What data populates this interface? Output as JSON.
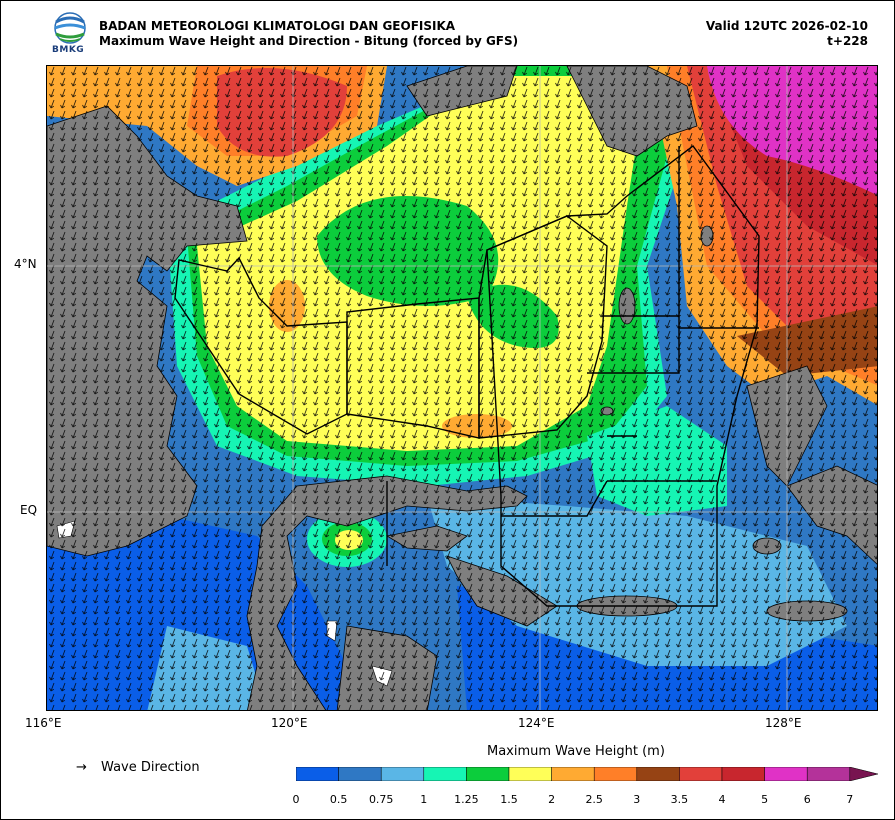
{
  "header": {
    "agency": "BADAN METEOROLOGI KLIMATOLOGI DAN GEOFISIKA",
    "product": "Maximum Wave Height and Direction - Bitung (forced by GFS)",
    "valid": "Valid 12UTC 2026-02-10",
    "forecast_hour": "t+228"
  },
  "logo": {
    "text": "BMKG"
  },
  "map": {
    "region": "Bitung",
    "lon_ticks": [
      "116°E",
      "120°E",
      "124°E",
      "128°E"
    ],
    "lat_ticks": [
      "4°N",
      "EQ"
    ],
    "land_color": "#7f7f7f",
    "dominant_direction": "south-southwest"
  },
  "legend": {
    "arrow_symbol": "→",
    "arrow_label": "Wave Direction",
    "colorbar_title": "Maximum Wave Height (m)",
    "bins": [
      "0",
      "0.5",
      "0.75",
      "1",
      "1.25",
      "1.5",
      "2",
      "2.5",
      "3",
      "3.5",
      "4",
      "5",
      "6",
      "7"
    ],
    "colors": [
      "#0a5ee8",
      "#2f78c4",
      "#5ab6e6",
      "#16f5b4",
      "#0ccd3c",
      "#ffff58",
      "#ffaa32",
      "#ff7f28",
      "#964314",
      "#e2403a",
      "#c8262e",
      "#e032c6",
      "#b4329a",
      "#781450"
    ]
  }
}
